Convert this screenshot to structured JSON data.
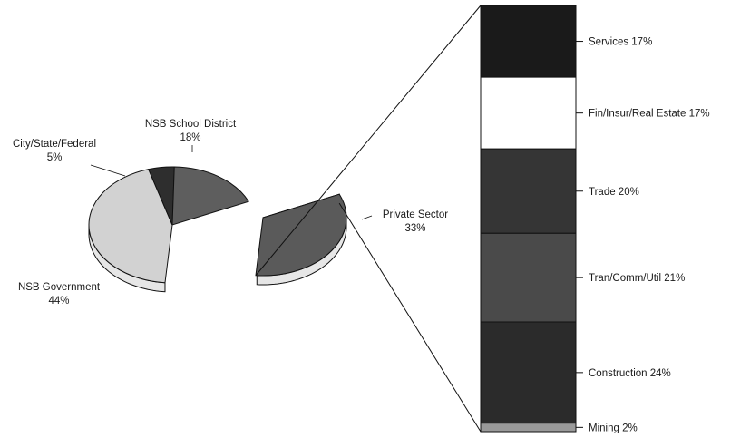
{
  "chart_data": [
    {
      "type": "pie",
      "title": "",
      "slices": [
        {
          "label": "NSB Government",
          "value": 44,
          "value_label": "44%",
          "color": "#d2d2d2",
          "exploded": false
        },
        {
          "label": "City/State/Federal",
          "value": 5,
          "value_label": "5%",
          "color": "#2e2e2e",
          "exploded": false
        },
        {
          "label": "NSB School District",
          "value": 18,
          "value_label": "18%",
          "color": "#5e5e5e",
          "exploded": false
        },
        {
          "label": "Private Sector",
          "value": 33,
          "value_label": "33%",
          "color": "#5a5a5a",
          "exploded": true
        }
      ]
    },
    {
      "type": "bar",
      "stacked": true,
      "parent_slice": "Private Sector",
      "title": "",
      "segments": [
        {
          "label": "Services",
          "value": 17,
          "value_label": "17%",
          "color": "#1a1a1a"
        },
        {
          "label": "Fin/Insur/Real Estate",
          "value": 17,
          "value_label": "17%",
          "color": "#ffffff"
        },
        {
          "label": "Trade",
          "value": 20,
          "value_label": "20%",
          "color": "#353535"
        },
        {
          "label": "Tran/Comm/Util",
          "value": 21,
          "value_label": "21%",
          "color": "#4a4a4a"
        },
        {
          "label": "Construction",
          "value": 24,
          "value_label": "24%",
          "color": "#2b2b2b"
        },
        {
          "label": "Mining",
          "value": 2,
          "value_label": "2%",
          "color": "#9a9a9a"
        }
      ]
    }
  ]
}
